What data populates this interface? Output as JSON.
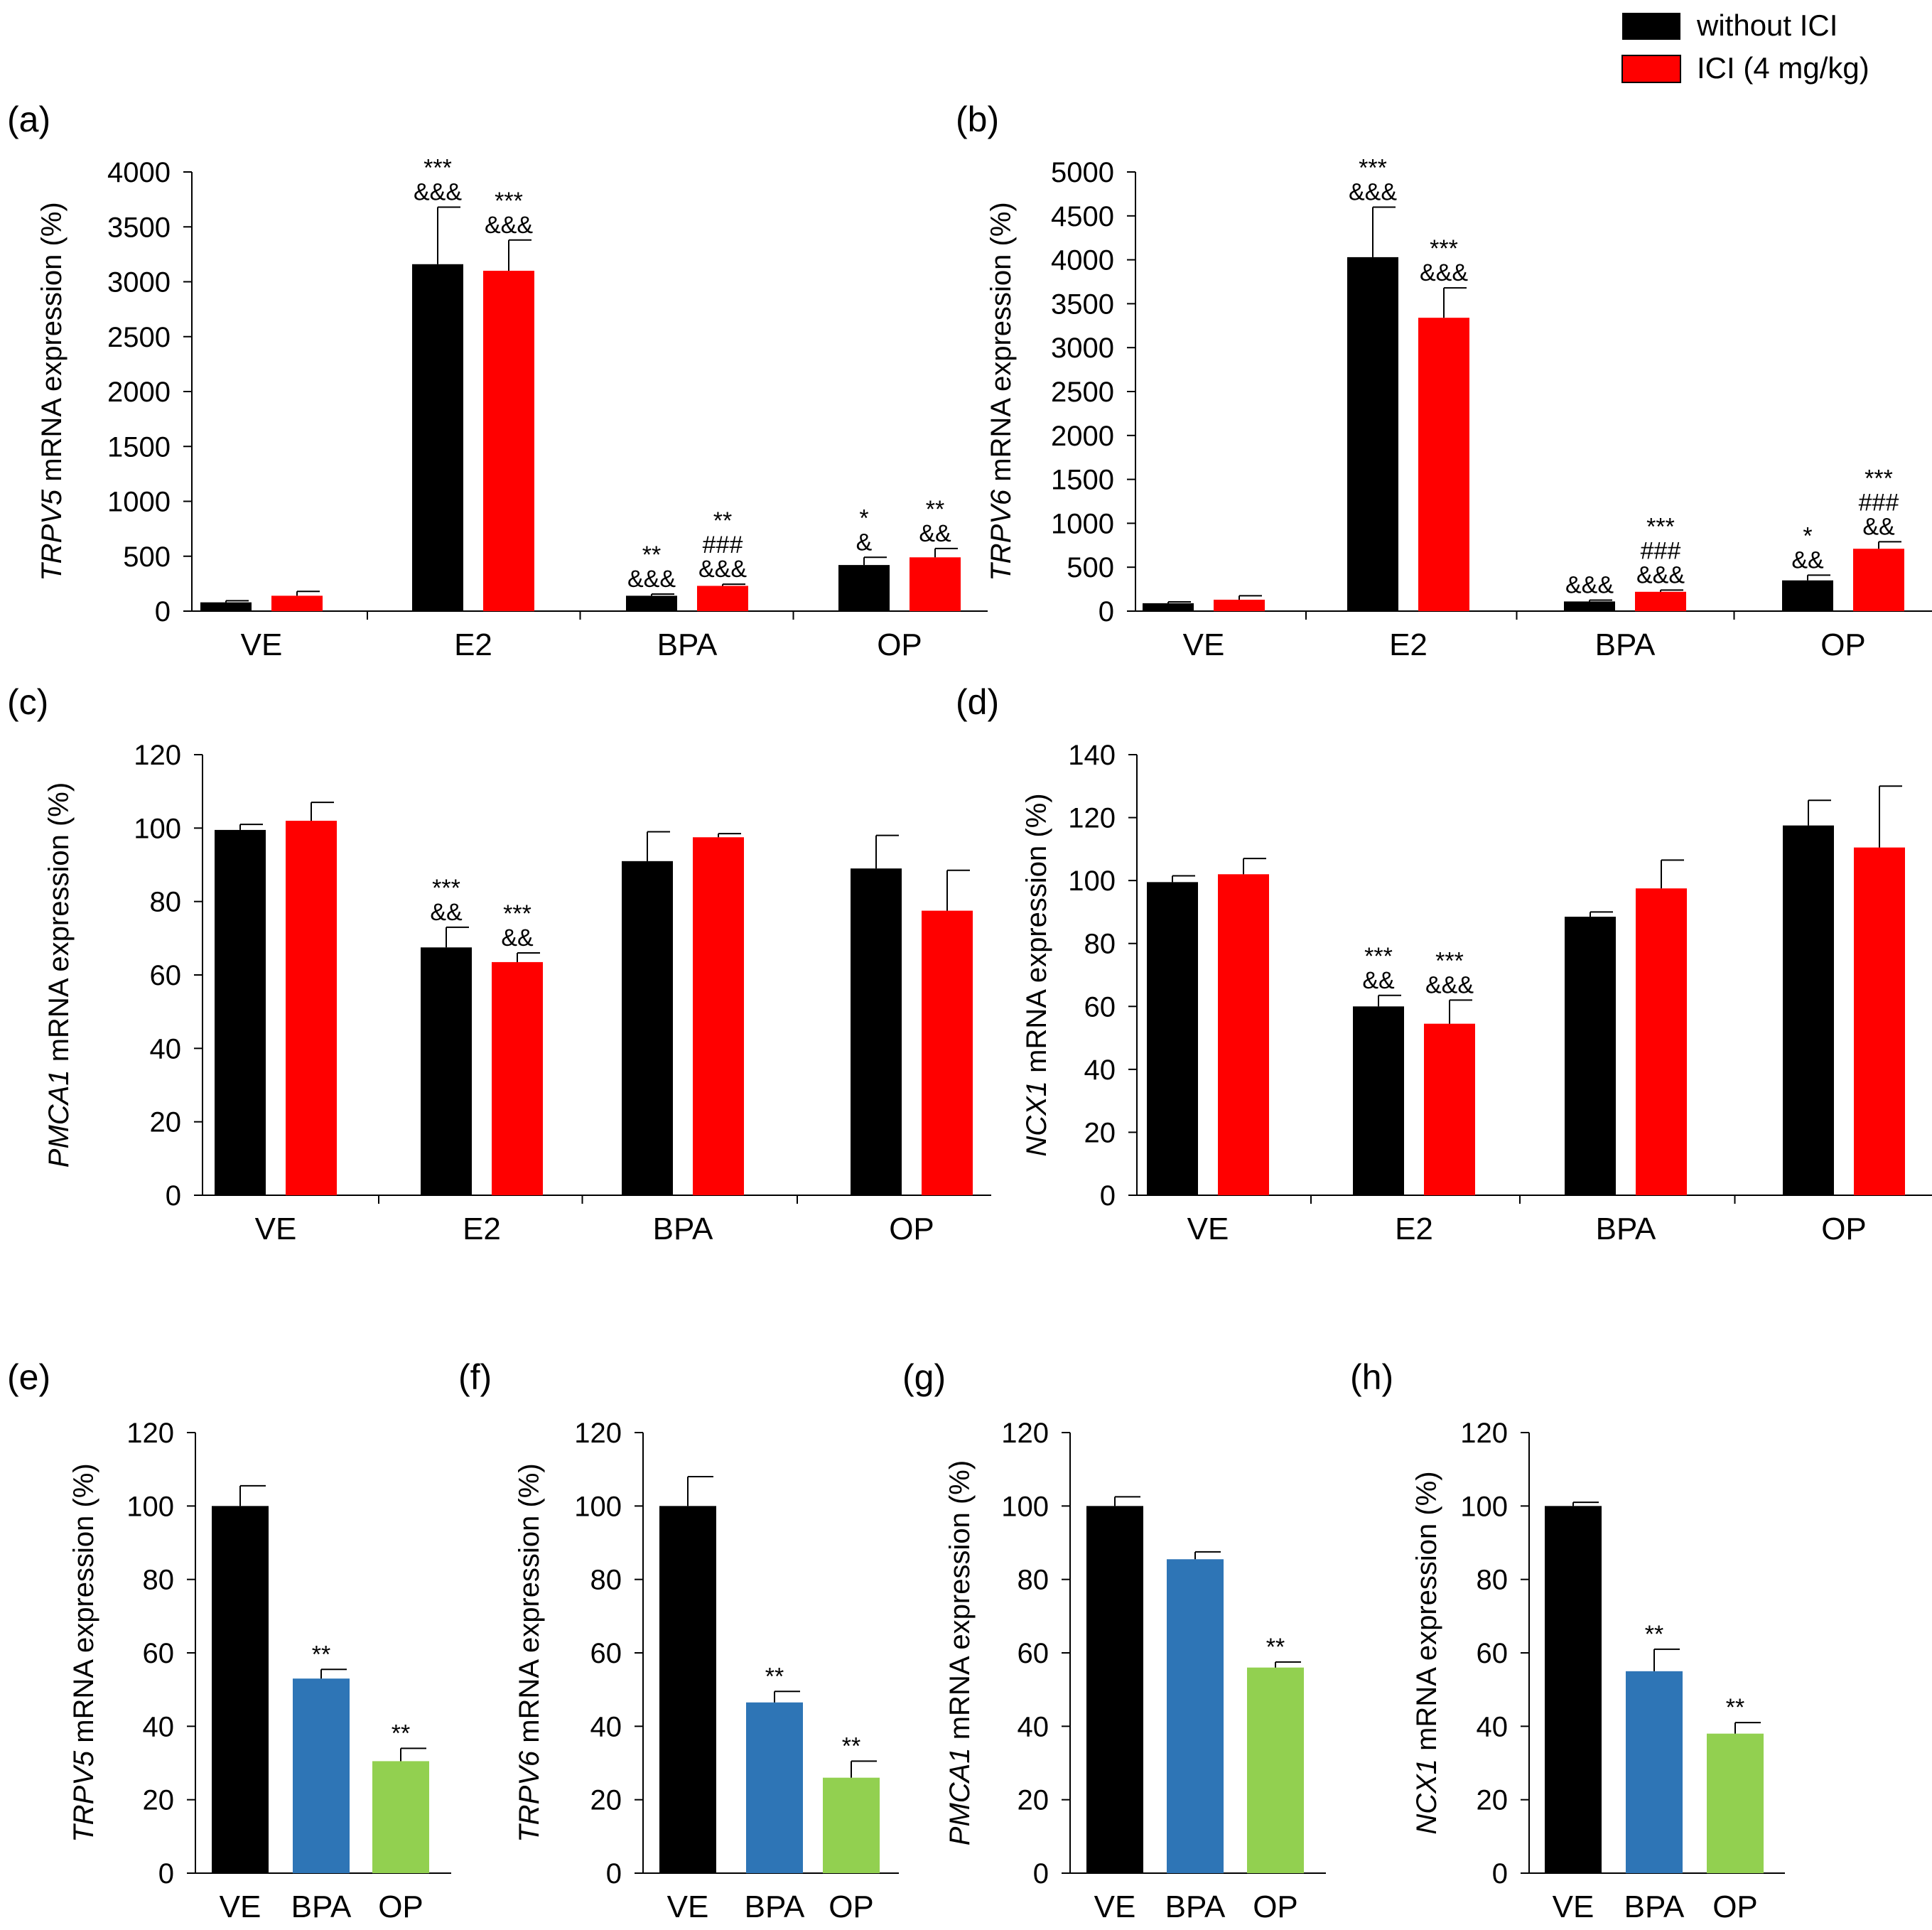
{
  "colors": {
    "black": "#000000",
    "red": "#ff0000",
    "blue": "#2e75b6",
    "green": "#92d050"
  },
  "legend": [
    {
      "label": "without ICI",
      "color": "#000000"
    },
    {
      "label": "ICI (4 mg/kg)",
      "color": "#ff0000"
    }
  ],
  "chart_data": [
    {
      "panel": "(a)",
      "type": "bar",
      "gene": "TRPV5",
      "ylabel_rest": " mRNA expression (%)",
      "categories": [
        "VE",
        "E2",
        "BPA",
        "OP"
      ],
      "ylim": [
        0,
        4000
      ],
      "ticks": [
        0,
        500,
        1000,
        1500,
        2000,
        2500,
        3000,
        3500,
        4000
      ],
      "series": [
        {
          "name": "without ICI",
          "color": "#000000",
          "values": [
            80,
            3160,
            140,
            420
          ],
          "errors": [
            15,
            520,
            15,
            70
          ],
          "sig": [
            [],
            [
              "***",
              "&&&"
            ],
            [
              "**",
              "&&&"
            ],
            [
              "*",
              "&"
            ]
          ]
        },
        {
          "name": "ICI (4 mg/kg)",
          "color": "#ff0000",
          "values": [
            140,
            3100,
            230,
            490
          ],
          "errors": [
            40,
            280,
            15,
            80
          ],
          "sig": [
            [],
            [
              "***",
              "&&&"
            ],
            [
              "**",
              "###",
              "&&&"
            ],
            [
              "**",
              "&&"
            ]
          ]
        }
      ]
    },
    {
      "panel": "(b)",
      "type": "bar",
      "gene": "TRPV6",
      "ylabel_rest": " mRNA expression (%)",
      "categories": [
        "VE",
        "E2",
        "BPA",
        "OP"
      ],
      "ylim": [
        0,
        5000
      ],
      "ticks": [
        0,
        500,
        1000,
        1500,
        2000,
        2500,
        3000,
        3500,
        4000,
        4500,
        5000
      ],
      "series": [
        {
          "name": "without ICI",
          "color": "#000000",
          "values": [
            90,
            4030,
            110,
            350
          ],
          "errors": [
            15,
            570,
            15,
            60
          ],
          "sig": [
            [],
            [
              "***",
              "&&&"
            ],
            [
              "&&&"
            ],
            [
              "*",
              "&&"
            ]
          ]
        },
        {
          "name": "ICI (4 mg/kg)",
          "color": "#ff0000",
          "values": [
            130,
            3340,
            220,
            710
          ],
          "errors": [
            45,
            340,
            20,
            80
          ],
          "sig": [
            [],
            [
              "***",
              "&&&"
            ],
            [
              "***",
              "###",
              "&&&"
            ],
            [
              "***",
              "###",
              "&&"
            ]
          ]
        }
      ]
    },
    {
      "panel": "(c)",
      "type": "bar",
      "gene": "PMCA1",
      "ylabel_rest": " mRNA expression (%)",
      "categories": [
        "VE",
        "E2",
        "BPA",
        "OP"
      ],
      "ylim": [
        0,
        120
      ],
      "ticks": [
        0,
        20,
        40,
        60,
        80,
        100,
        120
      ],
      "series": [
        {
          "name": "without ICI",
          "color": "#000000",
          "values": [
            99.5,
            67.5,
            91,
            89
          ],
          "errors": [
            1.5,
            5.5,
            8,
            9
          ],
          "sig": [
            [],
            [
              "***",
              "&&"
            ],
            [],
            []
          ]
        },
        {
          "name": "ICI (4 mg/kg)",
          "color": "#ff0000",
          "values": [
            102,
            63.5,
            97.5,
            77.5
          ],
          "errors": [
            5,
            2.5,
            1,
            11
          ],
          "sig": [
            [],
            [
              "***",
              "&&"
            ],
            [],
            []
          ]
        }
      ]
    },
    {
      "panel": "(d)",
      "type": "bar",
      "gene": "NCX1",
      "ylabel_rest": " mRNA expression (%)",
      "categories": [
        "VE",
        "E2",
        "BPA",
        "OP"
      ],
      "ylim": [
        0,
        140
      ],
      "ticks": [
        0,
        20,
        40,
        60,
        80,
        100,
        120,
        140
      ],
      "series": [
        {
          "name": "without ICI",
          "color": "#000000",
          "values": [
            99.5,
            60,
            88.5,
            117.5
          ],
          "errors": [
            2,
            3.5,
            1.5,
            8
          ],
          "sig": [
            [],
            [
              "***",
              "&&"
            ],
            [],
            []
          ]
        },
        {
          "name": "ICI (4 mg/kg)",
          "color": "#ff0000",
          "values": [
            102,
            54.5,
            97.5,
            110.5
          ],
          "errors": [
            5,
            7.5,
            9,
            19.5
          ],
          "sig": [
            [],
            [
              "***",
              "&&&"
            ],
            [],
            []
          ]
        }
      ]
    },
    {
      "panel": "(e)",
      "type": "bar",
      "gene": "TRPV5",
      "ylabel_rest": " mRNA expression (%)",
      "categories": [
        "VE",
        "BPA",
        "OP"
      ],
      "ylim": [
        0,
        120
      ],
      "ticks": [
        0,
        20,
        40,
        60,
        80,
        100,
        120
      ],
      "values": [
        100,
        53,
        30.5
      ],
      "errors": [
        5.5,
        2.5,
        3.5
      ],
      "colors": [
        "#000000",
        "#2e75b6",
        "#92d050"
      ],
      "sig": [
        "",
        "**",
        "**"
      ]
    },
    {
      "panel": "(f)",
      "type": "bar",
      "gene": "TRPV6",
      "ylabel_rest": " mRNA expression (%)",
      "categories": [
        "VE",
        "BPA",
        "OP"
      ],
      "ylim": [
        0,
        120
      ],
      "ticks": [
        0,
        20,
        40,
        60,
        80,
        100,
        120
      ],
      "values": [
        100,
        46.5,
        26
      ],
      "errors": [
        8,
        3,
        4.5
      ],
      "colors": [
        "#000000",
        "#2e75b6",
        "#92d050"
      ],
      "sig": [
        "",
        "**",
        "**"
      ]
    },
    {
      "panel": "(g)",
      "type": "bar",
      "gene": "PMCA1",
      "ylabel_rest": " mRNA expression (%)",
      "categories": [
        "VE",
        "BPA",
        "OP"
      ],
      "ylim": [
        0,
        120
      ],
      "ticks": [
        0,
        20,
        40,
        60,
        80,
        100,
        120
      ],
      "values": [
        100,
        85.5,
        56
      ],
      "errors": [
        2.5,
        2,
        1.5
      ],
      "colors": [
        "#000000",
        "#2e75b6",
        "#92d050"
      ],
      "sig": [
        "",
        "",
        "**"
      ]
    },
    {
      "panel": "(h)",
      "type": "bar",
      "gene": "NCX1",
      "ylabel_rest": " mRNA expression (%)",
      "categories": [
        "VE",
        "BPA",
        "OP"
      ],
      "ylim": [
        0,
        120
      ],
      "ticks": [
        0,
        20,
        40,
        60,
        80,
        100,
        120
      ],
      "values": [
        100,
        55,
        38
      ],
      "errors": [
        1,
        6,
        3
      ],
      "colors": [
        "#000000",
        "#2e75b6",
        "#92d050"
      ],
      "sig": [
        "",
        "**",
        "**"
      ]
    }
  ]
}
